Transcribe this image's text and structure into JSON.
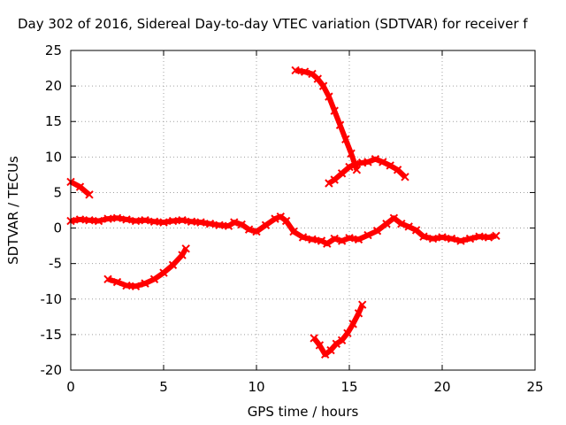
{
  "chart_data": {
    "type": "scatter",
    "title": "Day 302 of 2016, Sidereal Day-to-day VTEC variation (SDTVAR) for receiver f",
    "xlabel": "GPS time / hours",
    "ylabel": "SDTVAR / TECUs",
    "xlim": [
      0,
      25
    ],
    "ylim": [
      -20,
      25
    ],
    "xticks": [
      0,
      5,
      10,
      15,
      20,
      25
    ],
    "yticks": [
      -20,
      -15,
      -10,
      -5,
      0,
      5,
      10,
      15,
      20,
      25
    ],
    "xtick_labels": [
      "0",
      "5",
      "10",
      "15",
      "20",
      "25"
    ],
    "ytick_labels": [
      "-20",
      "-15",
      "-10",
      "-5",
      "0",
      "5",
      "10",
      "15",
      "20",
      "25"
    ],
    "grid": true,
    "color": "#ff0000",
    "series": [
      {
        "x": [
          0,
          0.5,
          1.0
        ],
        "y": [
          6.5,
          5.8,
          4.7
        ]
      },
      {
        "x": [
          0,
          0.5,
          1,
          1.5,
          2,
          2.5,
          3,
          3.5,
          4,
          4.5,
          5,
          5.5,
          6,
          6.5,
          7,
          7.5,
          8,
          8.5,
          8.8,
          9.2,
          9.6,
          10.0,
          10.5,
          11.0,
          11.3,
          11.6,
          12.0,
          12.5,
          13.0,
          13.5,
          13.8,
          14.2,
          14.6,
          15.0,
          15.5,
          16.0,
          16.5,
          17.0,
          17.4,
          17.8,
          18.2,
          18.6,
          19.0,
          19.5,
          20.0,
          20.5,
          21.0,
          21.5,
          22.0,
          22.5,
          22.9
        ],
        "y": [
          1.0,
          1.2,
          1.1,
          1.0,
          1.3,
          1.4,
          1.2,
          1.0,
          1.1,
          0.9,
          0.8,
          1.0,
          1.1,
          0.9,
          0.8,
          0.6,
          0.4,
          0.3,
          0.8,
          0.5,
          -0.2,
          -0.5,
          0.4,
          1.3,
          1.6,
          1.0,
          -0.5,
          -1.3,
          -1.6,
          -1.8,
          -2.2,
          -1.5,
          -1.8,
          -1.4,
          -1.6,
          -1.0,
          -0.4,
          0.6,
          1.4,
          0.6,
          0.2,
          -0.3,
          -1.2,
          -1.5,
          -1.3,
          -1.5,
          -1.8,
          -1.5,
          -1.2,
          -1.3,
          -1.1
        ]
      },
      {
        "x": [
          2.0,
          2.5,
          3.0,
          3.5,
          4.0,
          4.5,
          5.0,
          5.5,
          6.0,
          6.2
        ],
        "y": [
          -7.2,
          -7.6,
          -8.1,
          -8.2,
          -7.8,
          -7.2,
          -6.3,
          -5.2,
          -3.8,
          -2.9
        ]
      },
      {
        "x": [
          12.1,
          12.6,
          13.0,
          13.3,
          13.6,
          13.9,
          14.2,
          14.5,
          14.8,
          15.1,
          15.4
        ],
        "y": [
          22.2,
          22.0,
          21.7,
          21.0,
          20.0,
          18.5,
          16.5,
          14.5,
          12.5,
          10.5,
          8.2
        ]
      },
      {
        "x": [
          13.9,
          14.2,
          14.6,
          15.0,
          15.3,
          15.7,
          16.0,
          16.4,
          16.8,
          17.2,
          17.6,
          18.0
        ],
        "y": [
          6.3,
          6.8,
          7.7,
          8.6,
          9.0,
          9.2,
          9.3,
          9.7,
          9.3,
          8.8,
          8.2,
          7.2
        ]
      },
      {
        "x": [
          13.1,
          13.4,
          13.7,
          14.0,
          14.3,
          14.6,
          14.9,
          15.2,
          15.5,
          15.7
        ],
        "y": [
          -15.5,
          -16.5,
          -17.8,
          -17.2,
          -16.3,
          -15.8,
          -14.8,
          -13.5,
          -12.0,
          -10.8
        ]
      }
    ]
  }
}
